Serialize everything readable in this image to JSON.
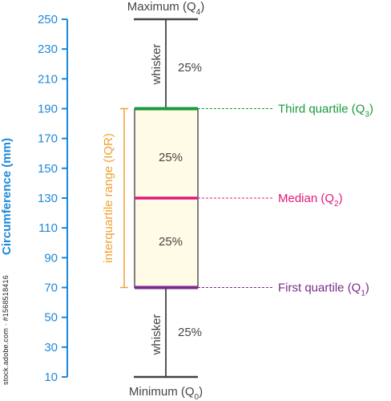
{
  "chart_data": {
    "type": "box",
    "ylabel": "Circumference (mm)",
    "ylim": [
      10,
      250
    ],
    "yticks": [
      10,
      30,
      50,
      70,
      90,
      110,
      130,
      150,
      170,
      190,
      210,
      230,
      250
    ],
    "box": {
      "min": 10,
      "q1": 70,
      "median": 130,
      "q3": 190,
      "max": 250
    },
    "labels": {
      "max": {
        "text": "Maximum (Q",
        "sub": "4",
        "suffix": ")"
      },
      "min": {
        "text": "Minimum (Q",
        "sub": "0",
        "suffix": ")"
      },
      "q3": {
        "text": "Third quartile (Q",
        "sub": "3",
        "suffix": ")"
      },
      "median": {
        "text": "Median (Q",
        "sub": "2",
        "suffix": ")"
      },
      "q1": {
        "text": "First quartile (Q",
        "sub": "1",
        "suffix": ")"
      }
    },
    "whisker_label": "whisker",
    "iqr_label": "interquartile range (IQR)",
    "percent_label": "25%",
    "colors": {
      "axis": "#1e88d9",
      "box_fill": "#fffbe6",
      "q3": "#1a9a3c",
      "median": "#e0197a",
      "q1": "#7a2a8c",
      "iqr": "#f0a030",
      "text": "#444444"
    }
  },
  "watermark": "stock.adobe.com · #1568518416"
}
